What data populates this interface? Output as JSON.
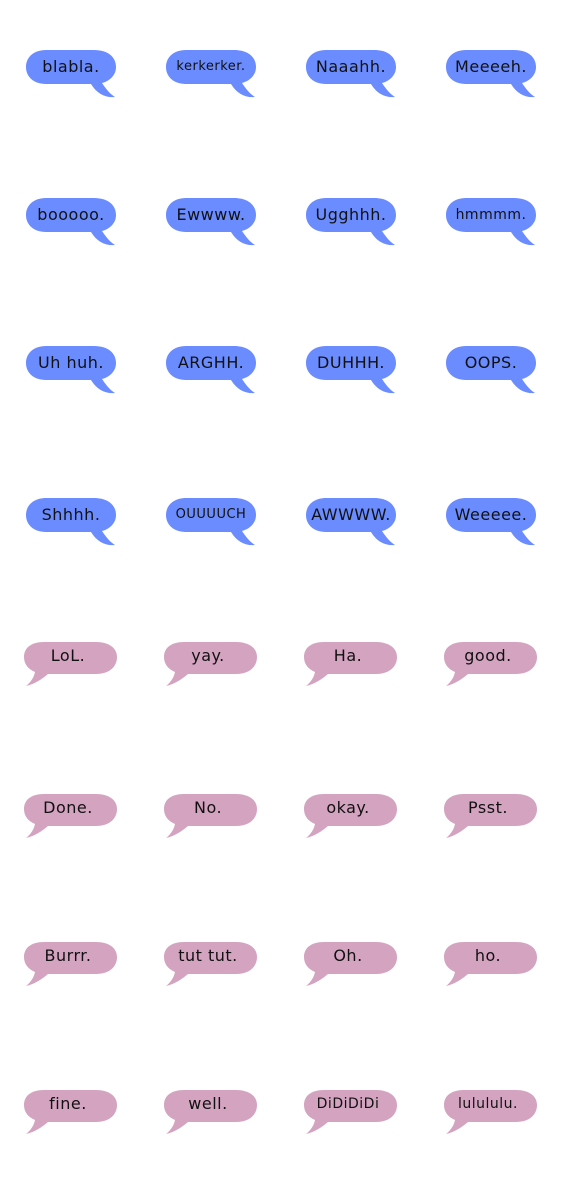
{
  "colors": {
    "blue_bubble": "#6b8cff",
    "pink_bubble": "#d4a3c0",
    "text": "#111111",
    "background": "#ffffff"
  },
  "stickers": [
    "blabla.",
    "kerkerker.",
    "Naaahh.",
    "Meeeeh.",
    "booooo.",
    "Ewwww.",
    "Ugghhh.",
    "hmmmm.",
    "Uh huh.",
    "ARGHH.",
    "DUHHH.",
    "OOPS.",
    "Shhhh.",
    "OUUUUCH",
    "AWWWW.",
    "Weeeee.",
    "LoL.",
    "yay.",
    "Ha.",
    "good.",
    "Done.",
    "No.",
    "okay.",
    "Psst.",
    "Burrr.",
    "tut tut.",
    "Oh.",
    "ho.",
    "fine.",
    "well.",
    "DiDiDiDi",
    "lulululu."
  ]
}
